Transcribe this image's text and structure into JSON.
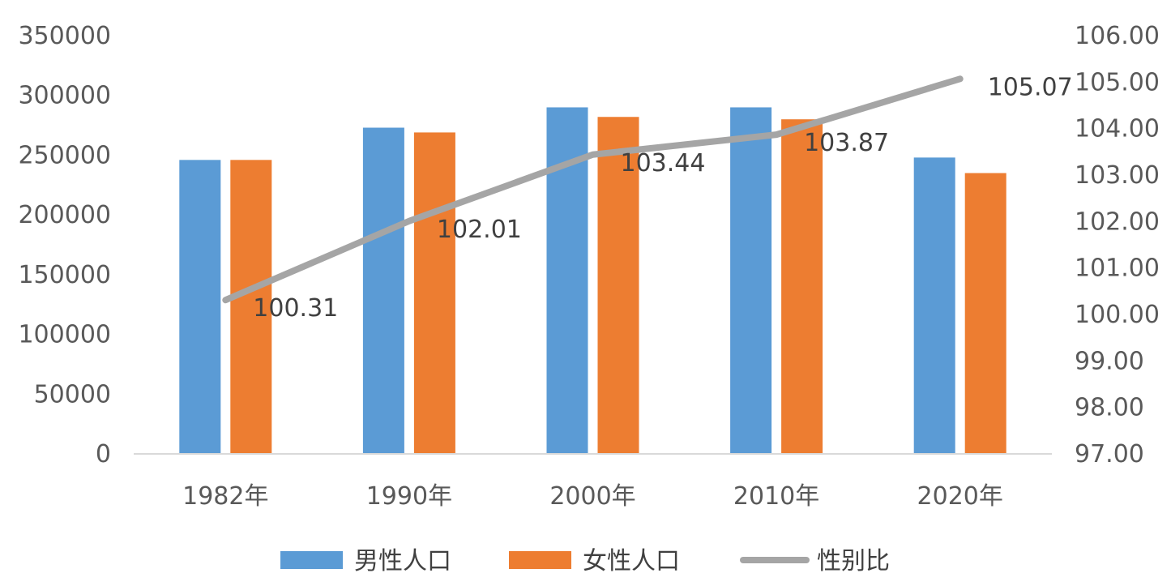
{
  "chart_data": {
    "type": "bar",
    "categories": [
      "1982年",
      "1990年",
      "2000年",
      "2010年",
      "2020年"
    ],
    "series": [
      {
        "name": "男性人口",
        "type": "bar",
        "axis": "left",
        "color": "#5B9BD5",
        "values": [
          246000,
          273000,
          290000,
          290000,
          248000
        ]
      },
      {
        "name": "女性人口",
        "type": "bar",
        "axis": "left",
        "color": "#ED7D31",
        "values": [
          246000,
          269000,
          282000,
          280000,
          235000
        ]
      },
      {
        "name": "性别比",
        "type": "line",
        "axis": "right",
        "color": "#A5A5A5",
        "values": [
          100.31,
          102.01,
          103.44,
          103.87,
          105.07
        ],
        "data_labels": [
          "100.31",
          "102.01",
          "103.44",
          "103.87",
          "105.07"
        ]
      }
    ],
    "left_axis": {
      "range": [
        0,
        350000
      ],
      "ticks": [
        "0",
        "50000",
        "100000",
        "150000",
        "200000",
        "250000",
        "300000",
        "350000"
      ]
    },
    "right_axis": {
      "range": [
        97,
        106
      ],
      "ticks": [
        "97.00",
        "98.00",
        "99.00",
        "100.00",
        "101.00",
        "102.00",
        "103.00",
        "104.00",
        "105.00",
        "106.00"
      ]
    },
    "grid": false,
    "legend": "bottom"
  }
}
